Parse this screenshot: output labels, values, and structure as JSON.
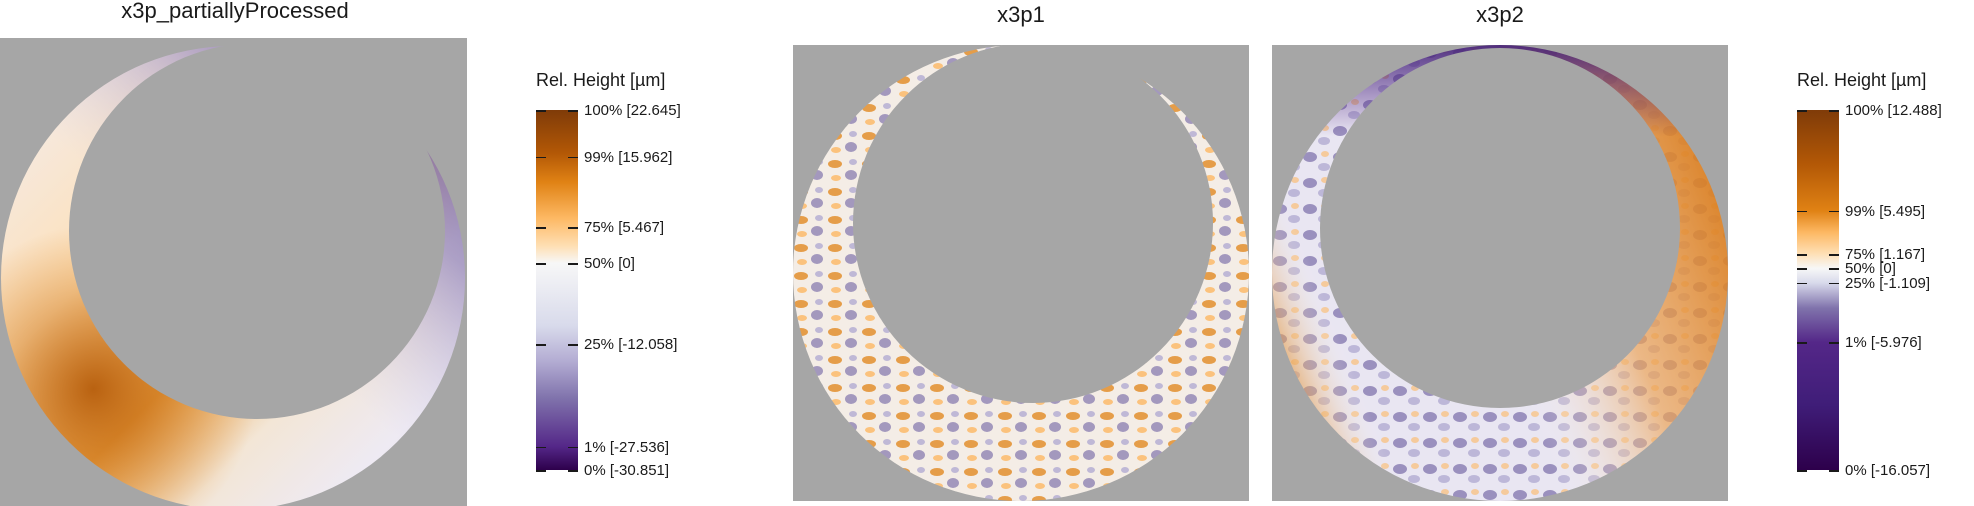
{
  "colors": {
    "background_gray": "#a6a6a6",
    "scale_low": "#2d004b",
    "scale_mid": "#f7f7f7",
    "scale_high": "#7f3b08"
  },
  "chart_data": [
    {
      "type": "heatmap",
      "title": "x3p_partiallyProcessed",
      "description_shape": "crescent ring surface map",
      "dominant_regions": [
        {
          "area": "upper-right arc",
          "level": "low (purple)"
        },
        {
          "area": "lower-left arc",
          "level": "high (orange)"
        },
        {
          "area": "bottom-right arc",
          "level": "mid (white)"
        }
      ]
    },
    {
      "type": "heatmap",
      "title": "x3p1",
      "description_shape": "crescent ring surface map",
      "dominant_regions": [
        {
          "area": "whole ring",
          "level": "mixed orange / purple texture"
        }
      ]
    },
    {
      "type": "heatmap",
      "title": "x3p2",
      "description_shape": "crescent ring surface map",
      "dominant_regions": [
        {
          "area": "right arc",
          "level": "high (orange)"
        },
        {
          "area": "top arc",
          "level": "low (purple)"
        },
        {
          "area": "bottom arc",
          "level": "mixed purple / white"
        }
      ]
    }
  ],
  "legends": [
    {
      "title": "Rel. Height [µm]",
      "ticks": [
        {
          "label": "100% [22.645]",
          "fraction": 1.0
        },
        {
          "label": "99% [15.962]",
          "fraction": 0.87
        },
        {
          "label": "75% [5.467]",
          "fraction": 0.675
        },
        {
          "label": "50% [0]",
          "fraction": 0.575
        },
        {
          "label": "25% [-12.058]",
          "fraction": 0.35
        },
        {
          "label": "1% [-27.536]",
          "fraction": 0.065
        },
        {
          "label": "0% [-30.851]",
          "fraction": 0.0
        }
      ]
    },
    {
      "title": "Rel. Height [µm]",
      "ticks": [
        {
          "label": "100% [12.488]",
          "fraction": 1.0
        },
        {
          "label": "99% [5.495]",
          "fraction": 0.72
        },
        {
          "label": "75% [1.167]",
          "fraction": 0.6
        },
        {
          "label": "50% [0]",
          "fraction": 0.56
        },
        {
          "label": "25% [-1.109]",
          "fraction": 0.52
        },
        {
          "label": "1% [-5.976]",
          "fraction": 0.355
        },
        {
          "label": "0% [-16.057]",
          "fraction": 0.0
        }
      ]
    }
  ]
}
